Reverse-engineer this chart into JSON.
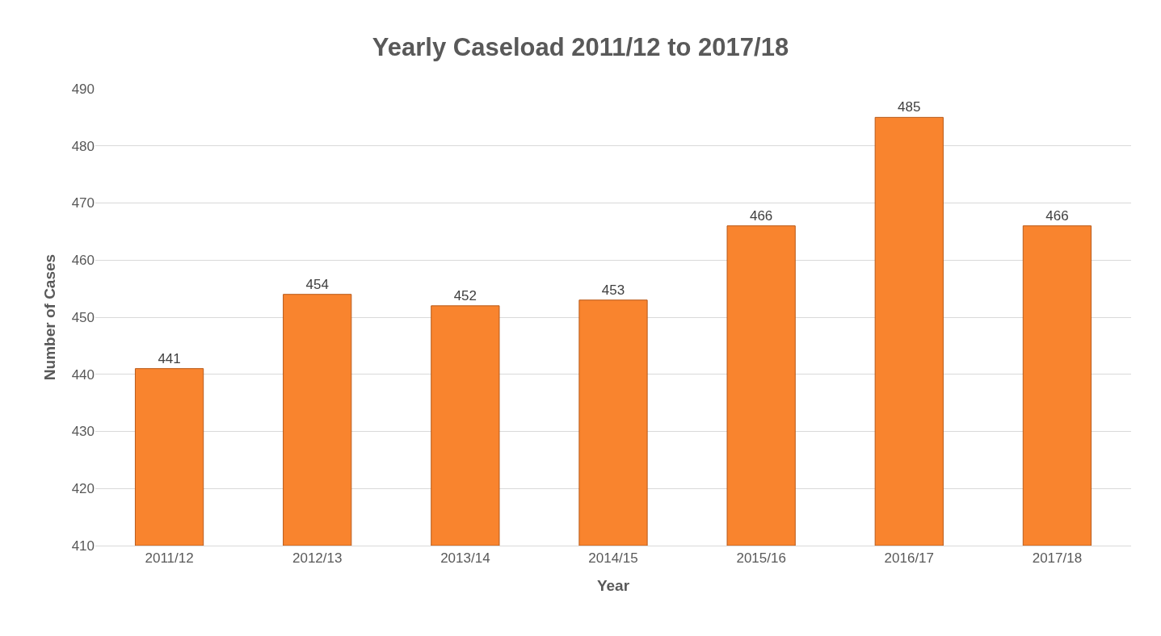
{
  "chart_data": {
    "type": "bar",
    "title": "Yearly Caseload 2011/12 to 2017/18",
    "xlabel": "Year",
    "ylabel": "Number of Cases",
    "categories": [
      "2011/12",
      "2012/13",
      "2013/14",
      "2014/15",
      "2015/16",
      "2016/17",
      "2017/18"
    ],
    "values": [
      441,
      454,
      452,
      453,
      466,
      485,
      466
    ],
    "color": "#f9842e",
    "ylim": [
      410,
      490
    ],
    "yticks": [
      410,
      420,
      430,
      440,
      450,
      460,
      470,
      480,
      490
    ],
    "grid": "y",
    "data_labels": true
  }
}
